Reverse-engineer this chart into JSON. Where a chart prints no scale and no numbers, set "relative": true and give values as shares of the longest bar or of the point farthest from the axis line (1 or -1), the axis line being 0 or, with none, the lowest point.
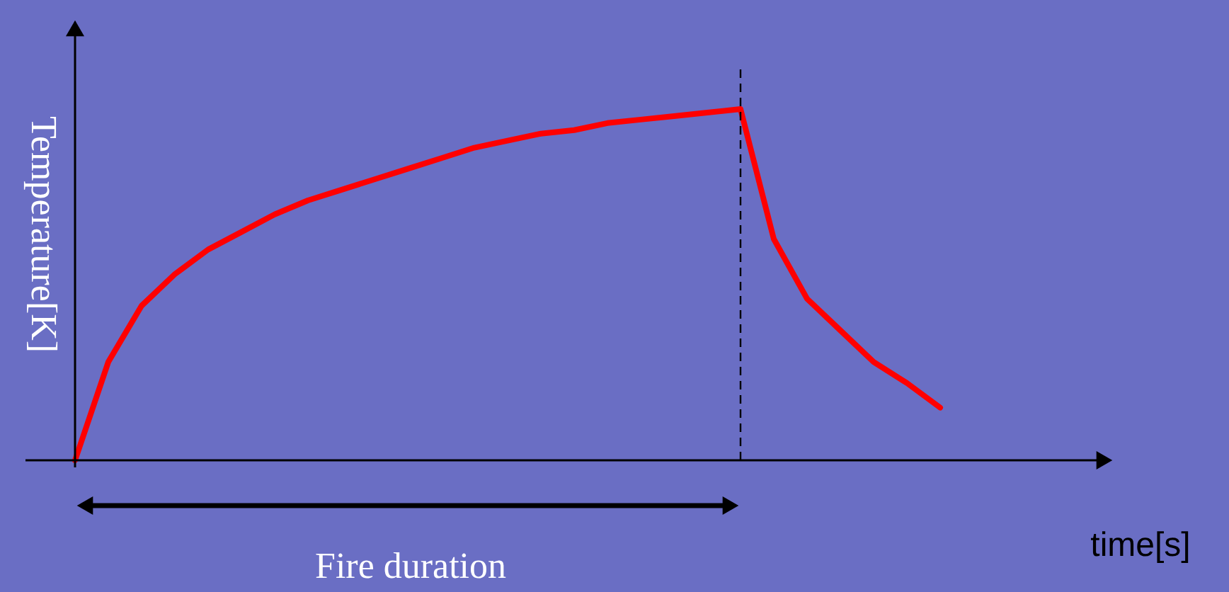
{
  "chart_data": {
    "type": "line",
    "relative": true,
    "xlabel": "time[s]",
    "ylabel": "Temperature[K]",
    "grid": false,
    "categories": [
      null,
      null,
      null,
      null,
      null,
      null,
      null,
      null,
      null,
      null,
      null,
      null,
      null,
      null,
      null,
      null,
      null,
      null,
      null,
      null,
      null,
      null,
      null,
      null,
      null,
      null,
      null
    ],
    "series": [
      {
        "color": "#ff0000",
        "values": [
          0,
          0.28,
          0.44,
          0.53,
          0.6,
          0.65,
          0.7,
          0.74,
          0.77,
          0.8,
          0.83,
          0.86,
          0.89,
          0.91,
          0.93,
          0.94,
          0.96,
          0.97,
          0.98,
          0.99,
          1,
          0.63,
          0.46,
          0.37,
          0.28,
          0.22,
          0.15
        ]
      }
    ],
    "annotations": [
      "Fire duration"
    ]
  }
}
